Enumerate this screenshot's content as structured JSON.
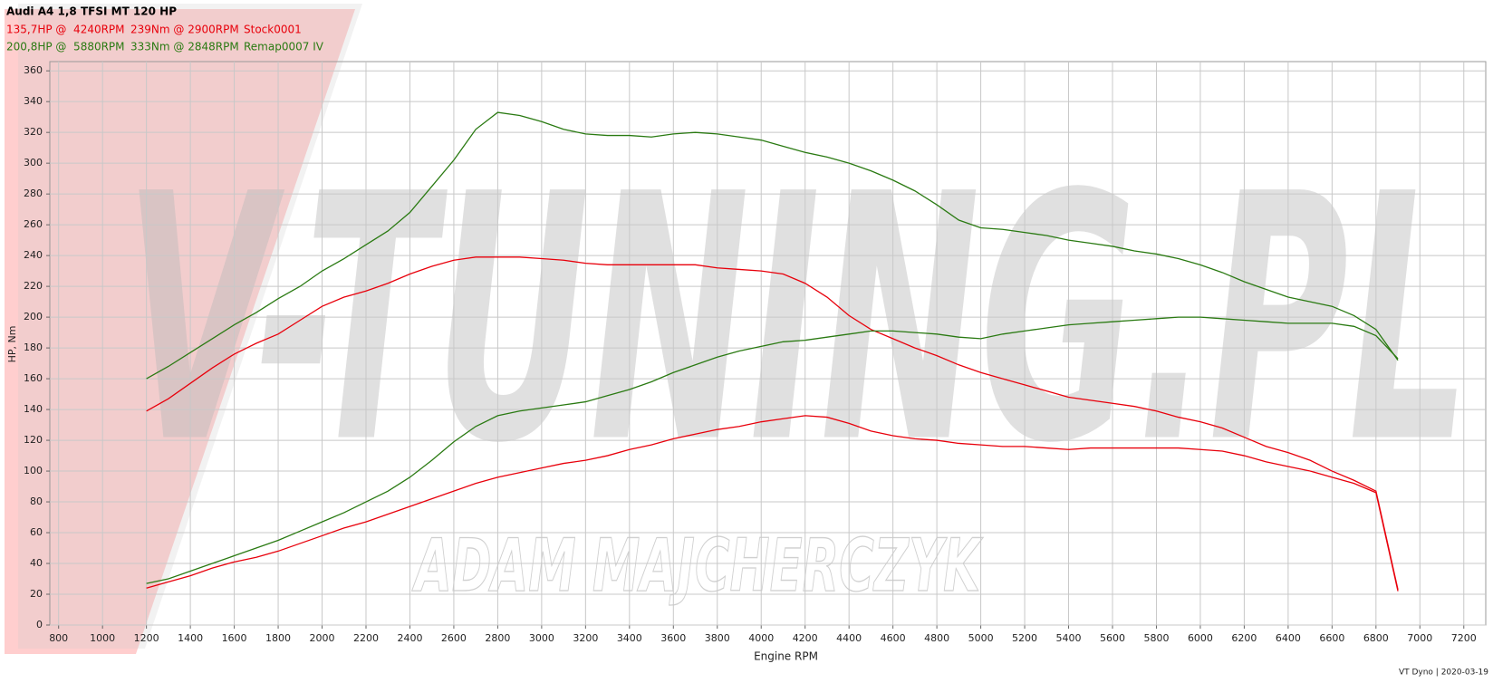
{
  "chart_data": {
    "type": "line",
    "title": "Audi A4 1,8 TFSI MT 120 HP",
    "xlabel": "Engine RPM",
    "ylabel": "HP, Nm",
    "footer": "VT Dyno | 2020-03-19",
    "watermark": [
      "V-TUNING.PL",
      "ADAM MAJCHERCZYK"
    ],
    "grid": true,
    "xlim": [
      760,
      7300
    ],
    "ylim": [
      0,
      366
    ],
    "xticks": [
      800,
      1000,
      1200,
      1400,
      1600,
      1800,
      2000,
      2200,
      2400,
      2600,
      2800,
      3000,
      3200,
      3400,
      3600,
      3800,
      4000,
      4200,
      4400,
      4600,
      4800,
      5000,
      5200,
      5400,
      5600,
      5800,
      6000,
      6200,
      6400,
      6600,
      6800,
      7000,
      7200
    ],
    "yticks": [
      0,
      20,
      40,
      60,
      80,
      100,
      120,
      140,
      160,
      180,
      200,
      220,
      240,
      260,
      280,
      300,
      320,
      340,
      360
    ],
    "x": [
      1200,
      1300,
      1400,
      1500,
      1600,
      1700,
      1800,
      1900,
      2000,
      2100,
      2200,
      2300,
      2400,
      2500,
      2600,
      2700,
      2800,
      2900,
      3000,
      3100,
      3200,
      3300,
      3400,
      3500,
      3600,
      3700,
      3800,
      3900,
      4000,
      4100,
      4200,
      4300,
      4400,
      4500,
      4600,
      4700,
      4800,
      4900,
      5000,
      5100,
      5200,
      5300,
      5400,
      5500,
      5600,
      5700,
      5800,
      5900,
      6000,
      6100,
      6200,
      6300,
      6400,
      6500,
      6600,
      6700,
      6800,
      6900
    ],
    "series": [
      {
        "name": "Stock0001",
        "color": "#e8000b",
        "summary": [
          "135,7HP @  4240RPM",
          "239Nm @ 2900RPM"
        ],
        "power": [
          24,
          28,
          32,
          37,
          41,
          44,
          48,
          53,
          58,
          63,
          67,
          72,
          77,
          82,
          87,
          92,
          96,
          99,
          102,
          105,
          107,
          110,
          114,
          117,
          121,
          124,
          127,
          129,
          132,
          134,
          136,
          135,
          131,
          126,
          123,
          121,
          120,
          118,
          117,
          116,
          116,
          115,
          114,
          115,
          115,
          115,
          115,
          115,
          114,
          113,
          110,
          106,
          103,
          100,
          96,
          92,
          86,
          22
        ],
        "torque": [
          139,
          147,
          157,
          167,
          176,
          183,
          189,
          198,
          207,
          213,
          217,
          222,
          228,
          233,
          237,
          239,
          239,
          239,
          238,
          237,
          235,
          234,
          234,
          234,
          234,
          234,
          232,
          231,
          230,
          228,
          222,
          213,
          201,
          192,
          186,
          180,
          175,
          169,
          164,
          160,
          156,
          152,
          148,
          146,
          144,
          142,
          139,
          135,
          132,
          128,
          122,
          116,
          112,
          107,
          100,
          94,
          87,
          23
        ]
      },
      {
        "name": "Remap0007 IV",
        "color": "#2a7a12",
        "summary": [
          "200,8HP @  5880RPM",
          "333Nm @ 2848RPM"
        ],
        "power": [
          27,
          30,
          35,
          40,
          45,
          50,
          55,
          61,
          67,
          73,
          80,
          87,
          96,
          107,
          119,
          129,
          136,
          139,
          141,
          143,
          145,
          149,
          153,
          158,
          164,
          169,
          174,
          178,
          181,
          184,
          185,
          187,
          189,
          191,
          191,
          190,
          189,
          187,
          186,
          189,
          191,
          193,
          195,
          196,
          197,
          198,
          199,
          200,
          200,
          199,
          198,
          197,
          196,
          196,
          196,
          194,
          188,
          173
        ],
        "torque": [
          160,
          168,
          177,
          186,
          195,
          203,
          212,
          220,
          230,
          238,
          247,
          256,
          268,
          285,
          302,
          322,
          333,
          331,
          327,
          322,
          319,
          318,
          318,
          317,
          319,
          320,
          319,
          317,
          315,
          311,
          307,
          304,
          300,
          295,
          289,
          282,
          273,
          263,
          258,
          257,
          255,
          253,
          250,
          248,
          246,
          243,
          241,
          238,
          234,
          229,
          223,
          218,
          213,
          210,
          207,
          201,
          192,
          172
        ]
      }
    ]
  }
}
